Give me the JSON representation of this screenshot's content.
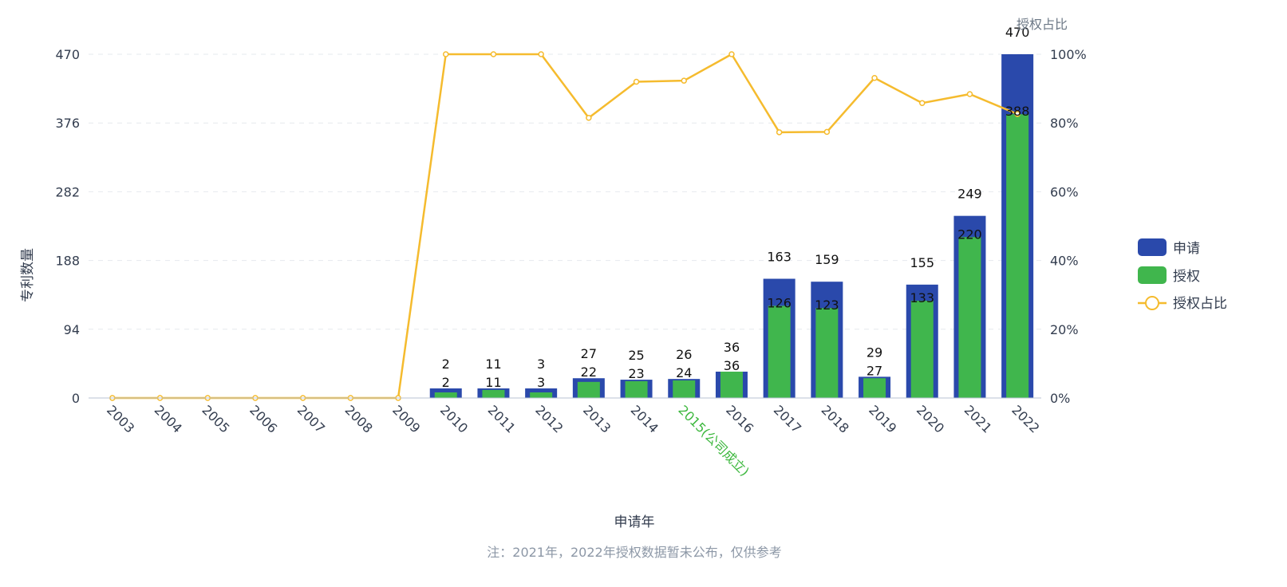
{
  "chart_data": {
    "type": "bar",
    "categories": [
      "2003",
      "2004",
      "2005",
      "2006",
      "2007",
      "2008",
      "2009",
      "2010",
      "2011",
      "2012",
      "2013",
      "2014",
      "2015(公司成立)",
      "2016",
      "2017",
      "2018",
      "2019",
      "2020",
      "2021",
      "2022"
    ],
    "highlight_category": "2015(公司成立)",
    "series": [
      {
        "name": "申请",
        "kind": "bar",
        "axis": "left",
        "color": "#2a49ab",
        "values": [
          0,
          0,
          0,
          0,
          0,
          0,
          0,
          2,
          11,
          3,
          27,
          25,
          26,
          36,
          163,
          159,
          29,
          155,
          249,
          470
        ]
      },
      {
        "name": "授权",
        "kind": "bar",
        "axis": "left",
        "color": "#40b64d",
        "values": [
          0,
          0,
          0,
          0,
          0,
          0,
          0,
          2,
          11,
          3,
          22,
          23,
          24,
          36,
          126,
          123,
          27,
          133,
          220,
          388
        ]
      },
      {
        "name": "授权占比",
        "kind": "line",
        "axis": "right",
        "color": "#f5bb2e",
        "values": [
          0,
          0,
          0,
          0,
          0,
          0,
          0,
          100,
          100,
          100,
          81.5,
          92,
          92.3,
          100,
          77.3,
          77.4,
          93.1,
          85.8,
          88.4,
          82.6
        ]
      }
    ],
    "left_axis": {
      "title": "专利数量",
      "ticks": [
        "0",
        "94",
        "188",
        "282",
        "376",
        "470"
      ],
      "ylim": [
        0,
        470
      ]
    },
    "right_axis": {
      "title": "授权占比",
      "ticks": [
        "0%",
        "20%",
        "40%",
        "60%",
        "80%",
        "100%"
      ],
      "ylim": [
        0,
        100
      ]
    },
    "xlabel": "申请年",
    "grid": true,
    "legend_position": "right",
    "note": "注：2021年，2022年授权数据暂未公布，仅供参考"
  }
}
